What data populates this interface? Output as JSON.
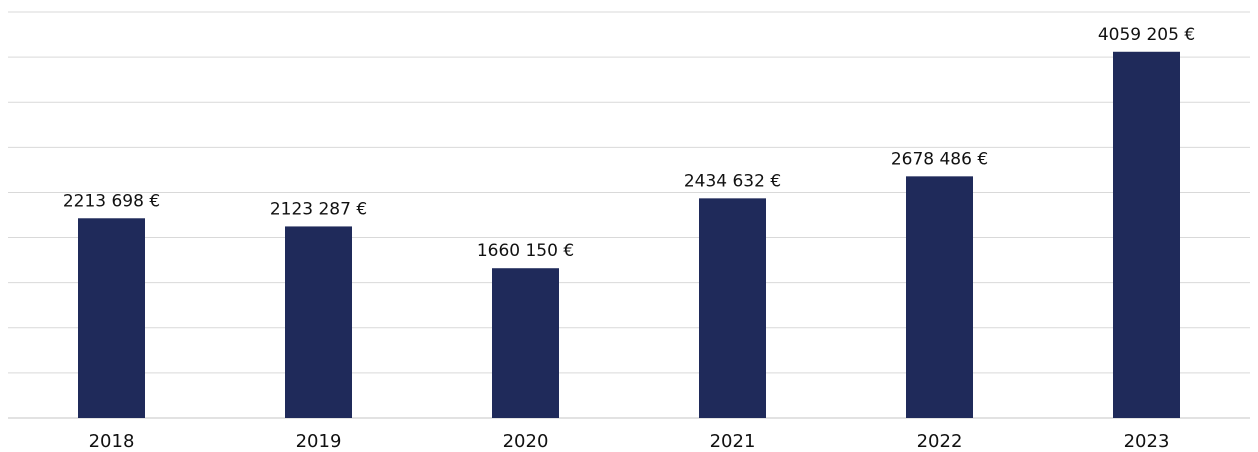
{
  "chart_data": {
    "type": "bar",
    "categories": [
      "2018",
      "2019",
      "2020",
      "2021",
      "2022",
      "2023"
    ],
    "values": [
      2213698,
      2123287,
      1660150,
      2434632,
      2678486,
      4059205
    ],
    "data_labels": [
      "2213 698 €",
      "2123 287 €",
      "1660 150 €",
      "2434 632 €",
      "2678 486 €",
      "4059 205 €"
    ],
    "ylim": [
      0,
      4500000
    ],
    "grid_step": 500000,
    "grid": true,
    "bar_color": "#1f2a5a",
    "title": "",
    "xlabel": "",
    "ylabel": ""
  }
}
